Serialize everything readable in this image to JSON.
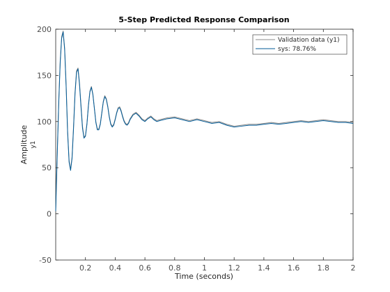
{
  "chart_data": {
    "type": "line",
    "title": "5-Step Predicted Response Comparison",
    "xlabel": "Time (seconds)",
    "ylabel": "Amplitude",
    "ylabel_sub": "y1",
    "xlim": [
      0,
      2
    ],
    "ylim": [
      -50,
      200
    ],
    "xticks": [
      0.2,
      0.4,
      0.6,
      0.8,
      1,
      1.2,
      1.4,
      1.6,
      1.8,
      2
    ],
    "xtick_labels": [
      "0.2",
      "0.4",
      "0.6",
      "0.8",
      "1",
      "1.2",
      "1.4",
      "1.6",
      "1.8",
      "2"
    ],
    "yticks": [
      -50,
      0,
      50,
      100,
      150,
      200
    ],
    "ytick_labels": [
      "-50",
      "0",
      "50",
      "100",
      "150",
      "200"
    ],
    "grid": false,
    "legend_position": "top-right",
    "legend_entries": [
      "Validation data (y1)",
      "sys: 78.76%"
    ],
    "series": [
      {
        "name": "Validation data (y1)",
        "color": "#888888",
        "x": [
          0,
          0.01,
          0.02,
          0.03,
          0.04,
          0.05,
          0.06,
          0.07,
          0.08,
          0.09,
          0.1,
          0.11,
          0.12,
          0.13,
          0.14,
          0.15,
          0.16,
          0.17,
          0.18,
          0.19,
          0.2,
          0.21,
          0.22,
          0.23,
          0.24,
          0.25,
          0.26,
          0.27,
          0.28,
          0.29,
          0.3,
          0.31,
          0.32,
          0.33,
          0.34,
          0.35,
          0.36,
          0.37,
          0.38,
          0.39,
          0.4,
          0.41,
          0.42,
          0.43,
          0.44,
          0.45,
          0.46,
          0.47,
          0.48,
          0.49,
          0.5,
          0.52,
          0.54,
          0.56,
          0.58,
          0.6,
          0.62,
          0.64,
          0.66,
          0.68,
          0.7,
          0.75,
          0.8,
          0.85,
          0.9,
          0.95,
          1.0,
          1.05,
          1.1,
          1.15,
          1.2,
          1.25,
          1.3,
          1.35,
          1.4,
          1.45,
          1.5,
          1.55,
          1.6,
          1.65,
          1.7,
          1.75,
          1.8,
          1.85,
          1.9,
          1.95,
          2.0
        ],
        "y": [
          5,
          65,
          120,
          165,
          192,
          198,
          180,
          140,
          90,
          58,
          48,
          62,
          95,
          132,
          155,
          158,
          142,
          118,
          95,
          83,
          85,
          98,
          118,
          133,
          138,
          130,
          115,
          100,
          92,
          92,
          98,
          110,
          122,
          128,
          125,
          117,
          106,
          98,
          95,
          97,
          103,
          110,
          115,
          116,
          112,
          106,
          101,
          98,
          97,
          99,
          103,
          108,
          110,
          107,
          103,
          101,
          104,
          106,
          103,
          101,
          102,
          104,
          105,
          103,
          101,
          103,
          101,
          99,
          100,
          97,
          95,
          96,
          97,
          97,
          98,
          99,
          98,
          99,
          100,
          101,
          100,
          101,
          102,
          101,
          100,
          100,
          99
        ]
      },
      {
        "name": "sys: 78.76%",
        "color": "#005a96",
        "x": [
          0,
          0.01,
          0.02,
          0.03,
          0.04,
          0.05,
          0.06,
          0.07,
          0.08,
          0.09,
          0.1,
          0.11,
          0.12,
          0.13,
          0.14,
          0.15,
          0.16,
          0.17,
          0.18,
          0.19,
          0.2,
          0.21,
          0.22,
          0.23,
          0.24,
          0.25,
          0.26,
          0.27,
          0.28,
          0.29,
          0.3,
          0.31,
          0.32,
          0.33,
          0.34,
          0.35,
          0.36,
          0.37,
          0.38,
          0.39,
          0.4,
          0.41,
          0.42,
          0.43,
          0.44,
          0.45,
          0.46,
          0.47,
          0.48,
          0.49,
          0.5,
          0.52,
          0.54,
          0.56,
          0.58,
          0.6,
          0.62,
          0.64,
          0.66,
          0.68,
          0.7,
          0.75,
          0.8,
          0.85,
          0.9,
          0.95,
          1.0,
          1.05,
          1.1,
          1.15,
          1.2,
          1.25,
          1.3,
          1.35,
          1.4,
          1.45,
          1.5,
          1.55,
          1.6,
          1.65,
          1.7,
          1.75,
          1.8,
          1.85,
          1.9,
          1.95,
          2.0
        ],
        "y": [
          3,
          62,
          118,
          163,
          190,
          197,
          178,
          138,
          88,
          56,
          47,
          60,
          93,
          130,
          153,
          157,
          140,
          116,
          93,
          82,
          84,
          97,
          117,
          132,
          137,
          129,
          114,
          99,
          91,
          91,
          97,
          109,
          121,
          127,
          124,
          116,
          105,
          97,
          94,
          96,
          102,
          109,
          114,
          115,
          111,
          105,
          100,
          97,
          96,
          98,
          102,
          107,
          109,
          106,
          102,
          100,
          103,
          105,
          102,
          100,
          101,
          103,
          104,
          102,
          100,
          102,
          100,
          98,
          99,
          96,
          94,
          95,
          96,
          96,
          97,
          98,
          97,
          98,
          99,
          100,
          99,
          100,
          101,
          100,
          99,
          99,
          98
        ]
      }
    ]
  }
}
